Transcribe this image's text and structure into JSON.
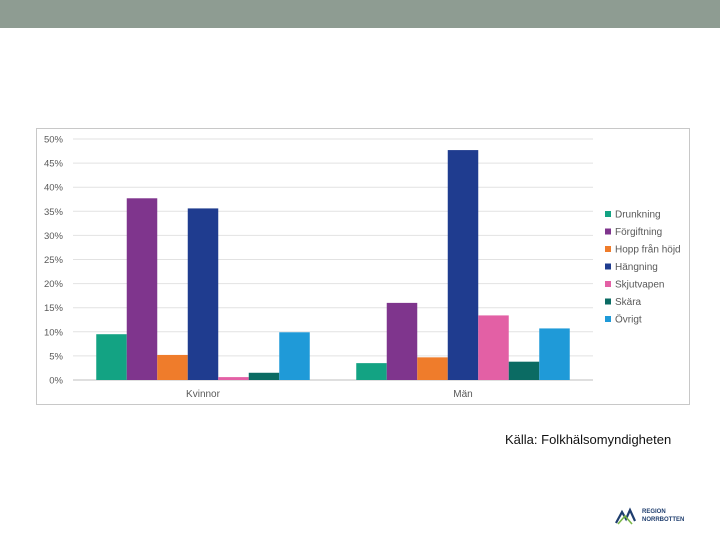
{
  "source_note": "Källa: Folkhälsomyndigheten",
  "logo": {
    "line1": "REGION",
    "line2": "NORRBOTTEN",
    "colors": [
      "#1f3e6e",
      "#7ab648"
    ]
  },
  "chart_data": {
    "type": "bar",
    "categories": [
      "Kvinnor",
      "Män"
    ],
    "ylim": [
      0,
      50
    ],
    "yticks": [
      0,
      5,
      10,
      15,
      20,
      25,
      30,
      35,
      40,
      45,
      50
    ],
    "ytick_labels": [
      "0%",
      "5%",
      "10%",
      "15%",
      "20%",
      "25%",
      "30%",
      "35%",
      "40%",
      "45%",
      "50%"
    ],
    "grid": true,
    "legend_position": "right",
    "series": [
      {
        "name": "Drunkning",
        "color": "#13a383",
        "values": [
          9.5,
          3.5
        ]
      },
      {
        "name": "Förgiftning",
        "color": "#7f358d",
        "values": [
          37.7,
          16.0
        ]
      },
      {
        "name": "Hopp från höjd",
        "color": "#ef7c2b",
        "values": [
          5.2,
          4.7
        ]
      },
      {
        "name": "Hängning",
        "color": "#1f3c8f",
        "values": [
          35.6,
          47.7
        ]
      },
      {
        "name": "Skjutvapen",
        "color": "#e360a5",
        "values": [
          0.6,
          13.4
        ]
      },
      {
        "name": "Skära",
        "color": "#0b6b63",
        "values": [
          1.5,
          3.8
        ]
      },
      {
        "name": "Övrigt",
        "color": "#1f9ad8",
        "values": [
          9.9,
          10.7
        ]
      }
    ]
  }
}
